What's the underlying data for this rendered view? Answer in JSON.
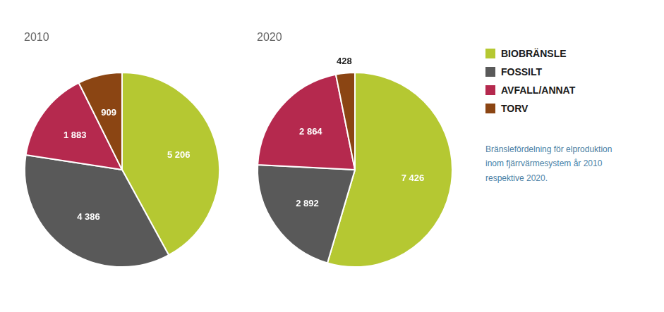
{
  "chart_data": [
    {
      "type": "pie",
      "title": "2010",
      "categories": [
        "BIOBRÄNSLE",
        "FOSSILT",
        "AVFALL/ANNAT",
        "TORV"
      ],
      "values": [
        5206,
        4386,
        1883,
        909
      ],
      "value_labels": [
        "5 206",
        "4 386",
        "1 883",
        "909"
      ],
      "colors": [
        "#b5c832",
        "#595959",
        "#b5294e",
        "#8B4513"
      ],
      "data_labels": true
    },
    {
      "type": "pie",
      "title": "2020",
      "categories": [
        "BIOBRÄNSLE",
        "FOSSILT",
        "AVFALL/ANNAT",
        "TORV"
      ],
      "values": [
        7426,
        2892,
        2864,
        428
      ],
      "value_labels": [
        "7 426",
        "2 892",
        "2 864",
        "428"
      ],
      "colors": [
        "#b5c832",
        "#595959",
        "#b5294e",
        "#8B4513"
      ],
      "data_labels": true,
      "legend": "right",
      "annotations": [
        "Bränslefördelning för elproduktion\ninom fjärrvärmesystem år 2010\nrespektive 2020."
      ]
    }
  ]
}
